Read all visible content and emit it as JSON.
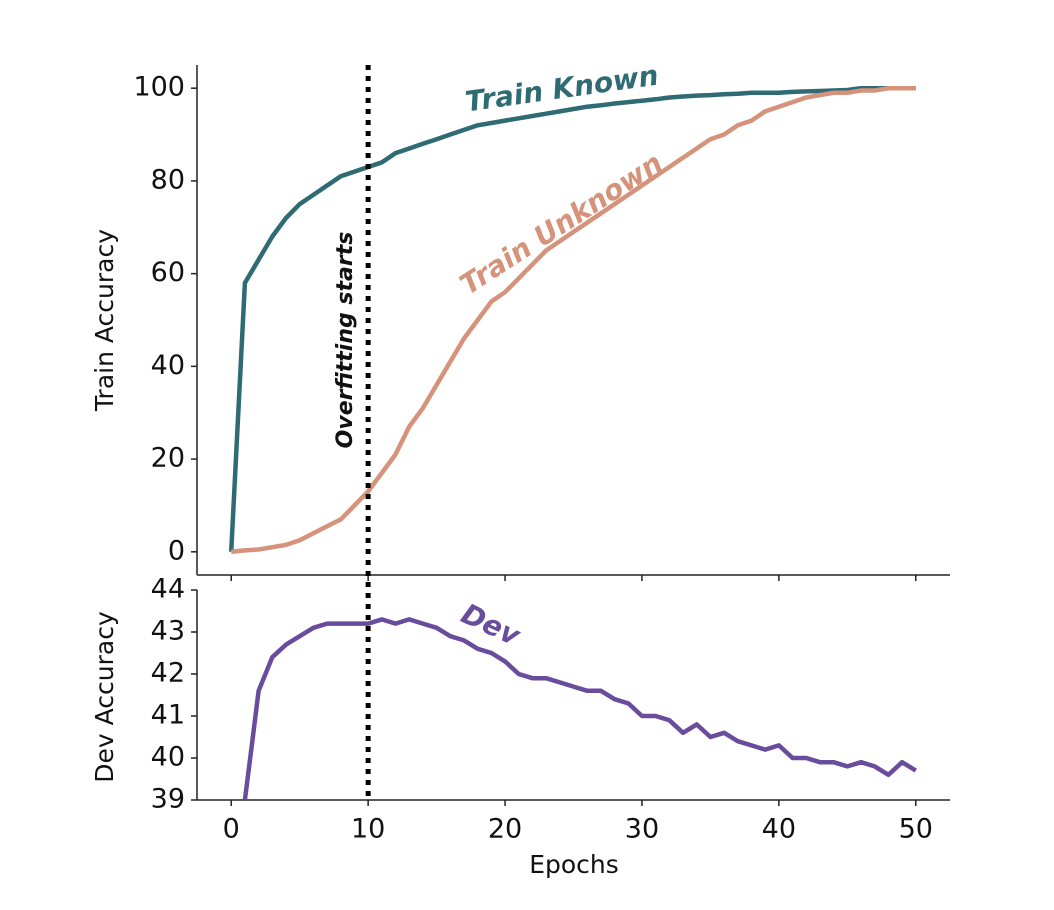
{
  "chart_data": [
    {
      "type": "line",
      "ylabel": "Train Accuracy",
      "x": [
        0,
        1,
        2,
        3,
        4,
        5,
        6,
        7,
        8,
        9,
        10,
        11,
        12,
        13,
        14,
        15,
        16,
        17,
        18,
        19,
        20,
        21,
        22,
        23,
        24,
        25,
        26,
        27,
        28,
        29,
        30,
        31,
        32,
        33,
        34,
        35,
        36,
        37,
        38,
        39,
        40,
        41,
        42,
        43,
        44,
        45,
        46,
        47,
        48,
        49,
        50
      ],
      "series": [
        {
          "name": "Train Known",
          "color": "#2e6b73",
          "values": [
            0,
            58,
            63,
            68,
            72,
            75,
            77,
            79,
            81,
            82,
            83,
            84,
            86,
            87,
            88,
            89,
            90,
            91,
            92,
            92.5,
            93,
            93.5,
            94,
            94.5,
            95,
            95.5,
            96,
            96.3,
            96.7,
            97,
            97.3,
            97.6,
            98,
            98.2,
            98.4,
            98.5,
            98.7,
            98.8,
            99,
            99,
            99,
            99.2,
            99.3,
            99.4,
            99.5,
            99.6,
            100,
            100,
            100,
            100,
            100
          ]
        },
        {
          "name": "Train Unknown",
          "color": "#d4937a",
          "values": [
            0,
            0.3,
            0.5,
            1,
            1.5,
            2.5,
            4,
            5.5,
            7,
            10,
            13,
            17,
            21,
            27,
            31,
            36,
            41,
            46,
            50,
            54,
            56,
            59,
            62,
            65,
            67,
            69,
            71,
            73,
            75,
            77,
            79,
            81,
            83,
            85,
            87,
            89,
            90,
            92,
            93,
            95,
            96,
            97,
            98,
            98.5,
            99,
            99,
            99.5,
            99.5,
            100,
            100,
            100
          ]
        }
      ],
      "xlim": [
        -2.5,
        52.5
      ],
      "xticks": [
        0,
        10,
        20,
        30,
        40,
        50
      ],
      "ylim": [
        -5,
        105
      ],
      "yticks": [
        0,
        20,
        40,
        60,
        80,
        100
      ],
      "vline": 10,
      "annotation": "Overfitting starts"
    },
    {
      "type": "line",
      "xlabel": "Epochs",
      "ylabel": "Dev Accuracy",
      "x": [
        1,
        1.5,
        2,
        3,
        4,
        5,
        6,
        7,
        8,
        9,
        10,
        11,
        12,
        13,
        14,
        15,
        16,
        17,
        18,
        19,
        20,
        21,
        22,
        23,
        24,
        25,
        26,
        27,
        28,
        29,
        30,
        31,
        32,
        33,
        34,
        35,
        36,
        37,
        38,
        39,
        40,
        41,
        42,
        43,
        44,
        45,
        46,
        47,
        48,
        49,
        50
      ],
      "series": [
        {
          "name": "Dev",
          "color": "#6a4c9c",
          "values": [
            39,
            40.3,
            41.6,
            42.4,
            42.7,
            42.9,
            43.1,
            43.2,
            43.2,
            43.2,
            43.2,
            43.3,
            43.2,
            43.3,
            43.2,
            43.1,
            42.9,
            42.8,
            42.6,
            42.5,
            42.3,
            42.0,
            41.9,
            41.9,
            41.8,
            41.7,
            41.6,
            41.6,
            41.4,
            41.3,
            41.0,
            41.0,
            40.9,
            40.6,
            40.8,
            40.5,
            40.6,
            40.4,
            40.3,
            40.2,
            40.3,
            40.0,
            40.0,
            39.9,
            39.9,
            39.8,
            39.9,
            39.8,
            39.6,
            39.9,
            39.7
          ]
        }
      ],
      "xlim": [
        -2.5,
        52.5
      ],
      "xticks": [
        0,
        10,
        20,
        30,
        40,
        50
      ],
      "ylim": [
        39,
        44
      ],
      "yticks": [
        39,
        40,
        41,
        42,
        43,
        44
      ]
    }
  ]
}
